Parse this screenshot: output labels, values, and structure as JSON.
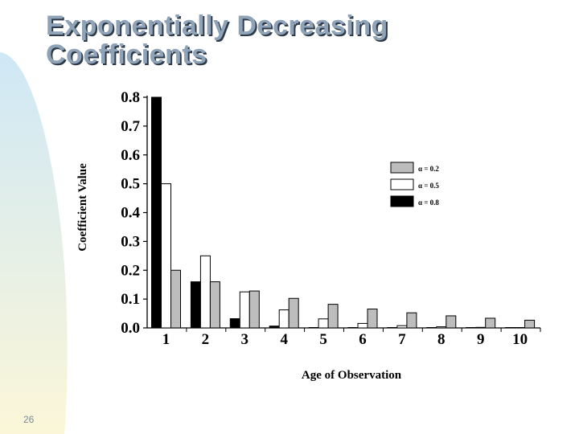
{
  "slide": {
    "title_line1": "Exponentially Decreasing",
    "title_line2": "Coefficients",
    "page_number": "26"
  },
  "colors": {
    "title": "#8fa3b8",
    "title_shadow": "#2e3a48",
    "swoosh_start": "#cfe8f6",
    "swoosh_end": "#fbf6d8"
  },
  "chart_data": {
    "type": "bar",
    "categories": [
      "1",
      "2",
      "3",
      "4",
      "5",
      "6",
      "7",
      "8",
      "9",
      "10"
    ],
    "series": [
      {
        "name": "α = 0.8",
        "color": "#000000",
        "values": [
          0.8,
          0.16,
          0.032,
          0.0064,
          0.0013,
          0.0003,
          0.0001,
          0.0,
          0.0,
          0.0
        ]
      },
      {
        "name": "α = 0.5",
        "color": "#ffffff",
        "values": [
          0.5,
          0.25,
          0.125,
          0.0625,
          0.0313,
          0.0156,
          0.0078,
          0.0039,
          0.002,
          0.001
        ]
      },
      {
        "name": "α = 0.2",
        "color": "#bdbdbd",
        "values": [
          0.2,
          0.16,
          0.128,
          0.1024,
          0.0819,
          0.0655,
          0.0524,
          0.0419,
          0.0336,
          0.0268
        ]
      }
    ],
    "xlabel": "Age of Observation",
    "ylabel": "Coefficient Value",
    "ylim": [
      0,
      0.8
    ],
    "yticks": [
      "0.0",
      "0.1",
      "0.2",
      "0.3",
      "0.4",
      "0.5",
      "0.6",
      "0.7",
      "0.8"
    ],
    "legend_order": [
      "α = 0.2",
      "α = 0.5",
      "α = 0.8"
    ],
    "legend_position": "top-right",
    "grid": false
  }
}
